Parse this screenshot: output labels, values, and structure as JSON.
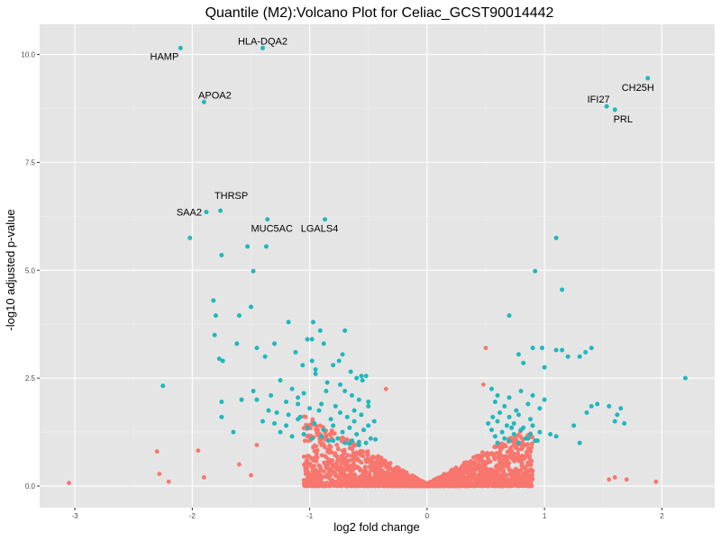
{
  "chart_data": {
    "type": "scatter",
    "title": "Quantile (M2):Volcano Plot for Celiac_GCST90014442",
    "xlabel": "log2 fold change",
    "ylabel": "-log10 adjusted p-value",
    "xlim": [
      -3.3,
      2.45
    ],
    "ylim": [
      -0.5,
      10.7
    ],
    "x_ticks": [
      -3,
      -2,
      -1,
      0,
      1,
      2
    ],
    "x_tick_labels": [
      "-3",
      "-2",
      "-1",
      "0",
      "1",
      "2"
    ],
    "y_ticks": [
      0,
      2.5,
      5,
      7.5,
      10
    ],
    "y_tick_labels": [
      "0.0",
      "2.5",
      "5.0",
      "7.5",
      "10.0"
    ],
    "grid": true,
    "legend": "none",
    "colors": {
      "significant": "#1fb8bd",
      "not_significant": "#f8766d",
      "panel_background": "#e5e5e5",
      "grid_major": "#ffffff",
      "grid_minor": "#efefef"
    },
    "labeled_points": [
      {
        "label": "HLA-DQA2",
        "x": -1.4,
        "y": 10.15
      },
      {
        "label": "HAMP",
        "x": -2.1,
        "y": 10.15
      },
      {
        "label": "APOA2",
        "x": -1.9,
        "y": 8.9
      },
      {
        "label": "CH25H",
        "x": 1.88,
        "y": 9.45
      },
      {
        "label": "IFI27",
        "x": 1.53,
        "y": 8.8
      },
      {
        "label": "PRL",
        "x": 1.6,
        "y": 8.72
      },
      {
        "label": "THRSP",
        "x": -1.76,
        "y": 6.38
      },
      {
        "label": "SAA2",
        "x": -1.88,
        "y": 6.35
      },
      {
        "label": "MUC5AC",
        "x": -1.36,
        "y": 6.18
      },
      {
        "label": "LGALS4",
        "x": -0.87,
        "y": 6.18
      }
    ],
    "series": [
      {
        "group": "significant",
        "x": [
          -2.02,
          -1.53,
          -1.37,
          -1.75,
          -1.48,
          -1.82,
          -1.8,
          -1.6,
          -1.81,
          -1.5,
          -1.18,
          -0.97,
          -0.91,
          -0.88,
          -1.02,
          -0.98,
          -1.62,
          -1.77,
          -2.25,
          -1.75,
          -1.58,
          -1.48,
          -1.75,
          -1.74,
          -1.65,
          -1.45,
          -1.38,
          -1.3,
          -1.12,
          -1.06,
          -0.98,
          -0.95,
          -0.8,
          -0.75,
          -0.72,
          -0.65,
          -0.52,
          -1.25,
          -1.15,
          -1.05,
          -0.85,
          -0.7,
          -0.6,
          -1.33,
          -1.2,
          -1.1,
          -0.9,
          -0.78,
          -0.58,
          -1.35,
          -1.28,
          -1.18,
          -1.08,
          -1.0,
          -0.92,
          -0.82,
          -0.74,
          -0.68,
          -0.62,
          -0.56,
          -1.4,
          -1.3,
          -1.2,
          -1.1,
          -1.02,
          -0.96,
          -0.88,
          -0.8,
          -0.72,
          -0.66,
          -0.6,
          -0.54,
          -0.5,
          -0.45,
          -1.25,
          -1.15,
          -1.05,
          -0.98,
          -0.9,
          -0.84,
          -0.76,
          -0.7,
          -0.64,
          -0.58,
          -0.52,
          -0.48,
          -1.45,
          -0.95,
          -0.7,
          -0.55,
          -1.1,
          -0.86,
          -0.62,
          -0.5,
          -0.8,
          -0.66,
          -0.58,
          -0.44,
          -0.74,
          -0.64,
          -0.56,
          -0.5,
          1.1,
          0.92,
          1.15,
          0.7,
          0.9,
          0.98,
          1.1,
          1.15,
          1.4,
          1.35,
          1.3,
          1.2,
          0.78,
          0.82,
          1.0,
          2.2,
          0.55,
          0.6,
          0.7,
          0.8,
          0.9,
          1.0,
          1.45,
          1.55,
          1.65,
          0.58,
          0.66,
          0.76,
          0.86,
          0.96,
          1.4,
          1.62,
          0.56,
          0.62,
          0.7,
          0.78,
          0.88,
          1.36,
          0.52,
          0.6,
          0.68,
          0.74,
          0.82,
          0.9,
          1.6,
          1.68,
          0.55,
          0.64,
          0.72,
          0.8,
          0.88,
          0.96,
          1.05,
          1.25,
          0.58,
          0.66,
          0.74,
          0.84,
          0.92,
          1.1,
          0.6,
          0.7,
          0.78,
          0.86,
          0.94,
          1.3
        ],
        "y": [
          5.75,
          5.55,
          5.55,
          5.35,
          4.98,
          4.3,
          3.95,
          3.95,
          3.5,
          4.15,
          3.8,
          3.8,
          3.6,
          3.3,
          3.4,
          3.4,
          3.3,
          2.95,
          2.32,
          1.95,
          2.0,
          2.2,
          1.6,
          2.9,
          1.25,
          3.2,
          3.0,
          3.3,
          3.1,
          2.8,
          2.9,
          2.6,
          2.8,
          2.9,
          3.05,
          2.65,
          2.55,
          2.45,
          2.25,
          2.15,
          2.4,
          2.2,
          2.5,
          2.1,
          1.95,
          2.05,
          1.9,
          1.85,
          2.0,
          1.75,
          1.7,
          1.65,
          1.6,
          1.8,
          1.75,
          1.55,
          1.7,
          1.6,
          1.5,
          1.65,
          1.5,
          1.45,
          1.4,
          1.55,
          1.35,
          1.45,
          1.3,
          1.4,
          1.25,
          1.35,
          1.2,
          1.3,
          1.4,
          1.5,
          1.25,
          1.15,
          1.2,
          1.1,
          1.15,
          1.05,
          1.1,
          1.0,
          1.05,
          0.95,
          1.0,
          1.1,
          2.0,
          2.7,
          3.6,
          2.45,
          1.9,
          2.2,
          1.75,
          1.95,
          1.05,
          0.98,
          1.02,
          1.08,
          2.35,
          2.1,
          2.55,
          1.85,
          5.75,
          4.98,
          4.55,
          3.95,
          3.2,
          3.2,
          3.15,
          3.15,
          3.2,
          3.1,
          3.0,
          3.0,
          3.05,
          2.85,
          2.75,
          2.5,
          2.25,
          2.1,
          2.05,
          2.2,
          2.1,
          2.0,
          1.9,
          1.85,
          1.8,
          1.95,
          1.85,
          1.75,
          1.9,
          1.8,
          1.85,
          1.65,
          1.6,
          1.7,
          1.6,
          1.65,
          1.55,
          1.7,
          1.45,
          1.5,
          1.4,
          1.45,
          1.35,
          1.4,
          1.5,
          1.45,
          1.3,
          1.25,
          1.35,
          1.3,
          1.2,
          1.25,
          1.2,
          1.4,
          1.15,
          1.1,
          1.2,
          1.1,
          1.05,
          1.15,
          1.0,
          1.05,
          1.0,
          1.1,
          1.05,
          1.0
        ]
      },
      {
        "group": "not_significant",
        "generated": true,
        "description": "several thousand non-significant genes forming the V-shaped cloud near x=0",
        "x": [
          -3.05,
          -2.3,
          -2.28,
          -2.2,
          -1.95,
          -1.9,
          -1.6,
          -1.5,
          -1.45,
          1.55,
          1.6,
          1.7,
          1.95,
          0.5,
          0.48,
          -0.35
        ],
        "y": [
          0.07,
          0.8,
          0.28,
          0.1,
          0.82,
          0.2,
          0.5,
          0.25,
          0.95,
          0.15,
          0.2,
          0.15,
          0.1,
          3.2,
          2.35,
          2.25
        ]
      }
    ]
  }
}
